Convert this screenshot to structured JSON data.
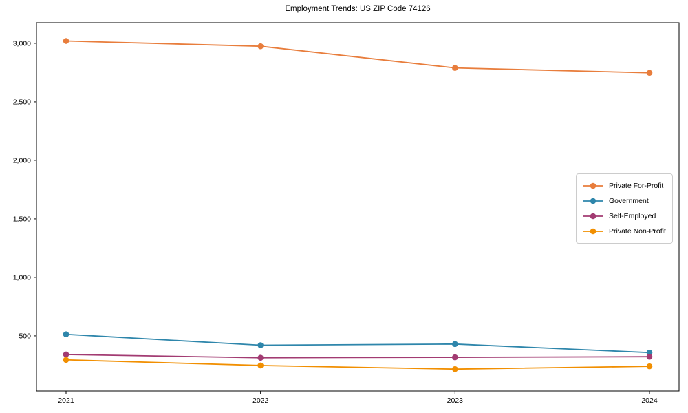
{
  "chart_data": {
    "type": "line",
    "title": "Employment Trends: US ZIP Code 74126",
    "xlabel": "",
    "ylabel": "",
    "categories": [
      "2021",
      "2022",
      "2023",
      "2024"
    ],
    "series": [
      {
        "name": "Private For-Profit",
        "color": "#E87D3C",
        "values": [
          3020,
          2975,
          2790,
          2748
        ]
      },
      {
        "name": "Government",
        "color": "#2E86AB",
        "values": [
          513,
          420,
          430,
          357
        ]
      },
      {
        "name": "Self-Employed",
        "color": "#A23B72",
        "values": [
          341,
          313,
          317,
          322
        ]
      },
      {
        "name": "Private Non-Profit",
        "color": "#F18F01",
        "values": [
          295,
          247,
          216,
          240
        ]
      }
    ],
    "ylim": [
      29,
      3176
    ],
    "yticks": [
      500,
      1000,
      1500,
      2000,
      2500,
      3000
    ],
    "ytick_labels": [
      "500",
      "1,000",
      "1,500",
      "2,000",
      "2,500",
      "3,000"
    ],
    "grid": false,
    "legend_position": "center-right",
    "frame_color": "#000000",
    "background_color": "#ffffff"
  }
}
